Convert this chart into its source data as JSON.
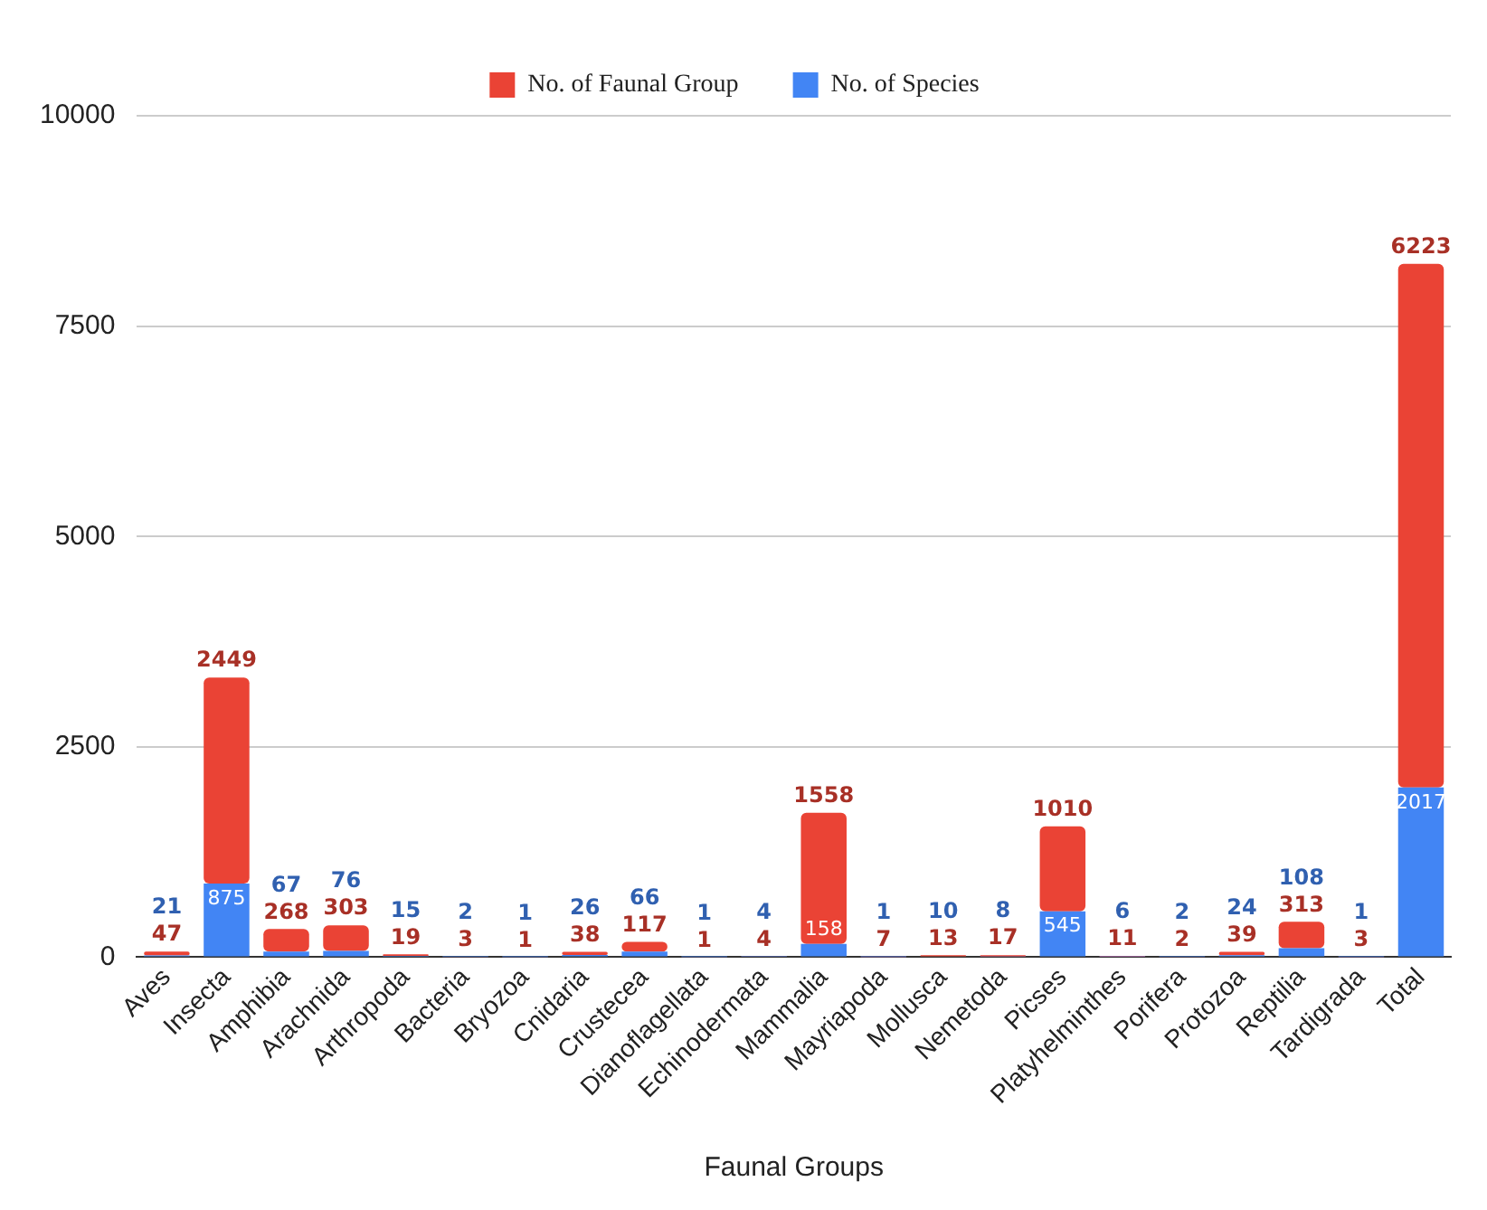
{
  "chart_data": {
    "type": "bar",
    "stacked": true,
    "xlabel": "Faunal Groups",
    "categories": [
      "Aves",
      "Insecta",
      "Amphibia",
      "Arachnida",
      "Arthropoda",
      "Bacteria",
      "Bryozoa",
      "Cnidaria",
      "Crustecea",
      "Dianoflagellata",
      "Echinodermata",
      "Mammalia",
      "Mayriapoda",
      "Mollusca",
      "Nemetoda",
      "Picses",
      "Platyhelminthes",
      "Porifera",
      "Protozoa",
      "Reptilia",
      "Tardigrada",
      "Total"
    ],
    "series": [
      {
        "name": "No. of Species",
        "color": "#4285f4",
        "values": [
          21,
          875,
          67,
          76,
          15,
          2,
          1,
          26,
          66,
          1,
          4,
          158,
          1,
          10,
          8,
          545,
          6,
          2,
          24,
          108,
          1,
          2017
        ]
      },
      {
        "name": "No. of Faunal Group",
        "color": "#ea4335",
        "values": [
          47,
          2449,
          268,
          303,
          19,
          3,
          1,
          38,
          117,
          1,
          4,
          1558,
          7,
          13,
          17,
          1010,
          11,
          2,
          39,
          313,
          3,
          6223
        ]
      }
    ],
    "ylim": [
      0,
      10000
    ],
    "yticks": [
      0,
      2500,
      5000,
      7500,
      10000
    ],
    "grid": "y",
    "legend": "top",
    "data_labels": true
  }
}
